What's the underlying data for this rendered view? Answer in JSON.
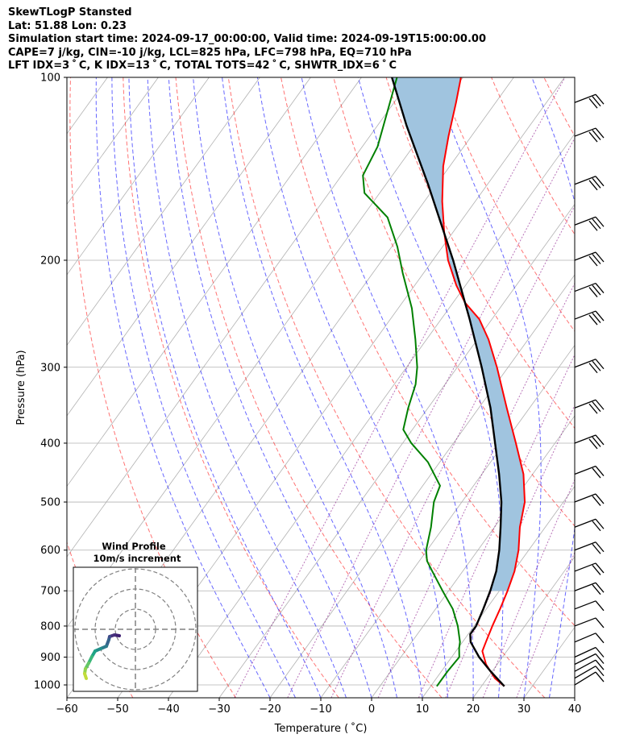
{
  "header": {
    "line1": "SkewTLogP Stansted",
    "line2": "Lat: 51.88   Lon: 0.23",
    "line3": "Simulation start time: 2024-09-17_00:00:00, Valid time: 2024-09-19T15:00:00.00",
    "line4": "CAPE=7 j/kg, CIN=-10 j/kg, LCL=825 hPa, LFC=798 hPa, EQ=710 hPa",
    "line5": "LFT IDX=3 ˚ C, K IDX=13 ˚ C, TOTAL TOTS=42 ˚ C, SHWTR_IDX=6 ˚ C"
  },
  "chart_data": {
    "type": "line",
    "xlabel": "Temperature ( ˚C)",
    "ylabel": "Pressure (hPa)",
    "xlim": [
      -60,
      40
    ],
    "ylim": [
      1050,
      100
    ],
    "x_ticks": [
      "−60",
      "−50",
      "−40",
      "−30",
      "−20",
      "−10",
      "0",
      "10",
      "20",
      "30",
      "40"
    ],
    "y_ticks": [
      "1000",
      "900",
      "800",
      "700",
      "600",
      "500",
      "400",
      "300",
      "200",
      "100"
    ],
    "skew": true,
    "log_pressure": true,
    "grid": true,
    "colors": {
      "temperature": "#ff0000",
      "dewpoint": "#008000",
      "parcel": "#000000",
      "cape_fill": "#a0c4df",
      "dry_adiabats": "#ff0000",
      "moist_adiabats": "#0000ff",
      "mixing_ratio": "#800080"
    },
    "series": [
      {
        "key": "temperature",
        "points": [
          [
            1005,
            24.5
          ],
          [
            975,
            21.5
          ],
          [
            925,
            17.8
          ],
          [
            880,
            15.2
          ],
          [
            850,
            14.6
          ],
          [
            800,
            13.6
          ],
          [
            750,
            12.7
          ],
          [
            700,
            11.6
          ],
          [
            650,
            10.2
          ],
          [
            600,
            8.0
          ],
          [
            550,
            5.0
          ],
          [
            500,
            2.4
          ],
          [
            450,
            -1.8
          ],
          [
            400,
            -7.7
          ],
          [
            350,
            -14.5
          ],
          [
            300,
            -22.2
          ],
          [
            270,
            -27.8
          ],
          [
            250,
            -32.5
          ],
          [
            235,
            -37.6
          ],
          [
            220,
            -41.8
          ],
          [
            200,
            -47.0
          ],
          [
            180,
            -51.7
          ],
          [
            160,
            -56.5
          ],
          [
            140,
            -61.3
          ],
          [
            125,
            -64.5
          ],
          [
            110,
            -67.8
          ],
          [
            100,
            -70.4
          ]
        ]
      },
      {
        "key": "dewpoint",
        "points": [
          [
            1005,
            11.2
          ],
          [
            950,
            11.2
          ],
          [
            900,
            11.5
          ],
          [
            870,
            10.2
          ],
          [
            850,
            9.5
          ],
          [
            800,
            6.8
          ],
          [
            750,
            3.4
          ],
          [
            700,
            -1.2
          ],
          [
            650,
            -6.0
          ],
          [
            625,
            -8.5
          ],
          [
            600,
            -10.2
          ],
          [
            550,
            -12.5
          ],
          [
            500,
            -15.5
          ],
          [
            470,
            -16.6
          ],
          [
            430,
            -22.3
          ],
          [
            400,
            -28.3
          ],
          [
            380,
            -31.8
          ],
          [
            350,
            -33.9
          ],
          [
            320,
            -35.8
          ],
          [
            300,
            -37.9
          ],
          [
            270,
            -42.2
          ],
          [
            240,
            -47.3
          ],
          [
            210,
            -54.1
          ],
          [
            190,
            -58.9
          ],
          [
            170,
            -65.0
          ],
          [
            155,
            -73.0
          ],
          [
            145,
            -75.8
          ],
          [
            130,
            -77.0
          ],
          [
            115,
            -79.8
          ],
          [
            100,
            -83.0
          ]
        ]
      },
      {
        "key": "parcel",
        "points": [
          [
            1005,
            24.5
          ],
          [
            950,
            19.7
          ],
          [
            900,
            15.4
          ],
          [
            850,
            11.6
          ],
          [
            825,
            10.4
          ],
          [
            800,
            10.4
          ],
          [
            750,
            9.4
          ],
          [
            700,
            8.2
          ],
          [
            650,
            6.6
          ],
          [
            600,
            4.2
          ],
          [
            550,
            1.2
          ],
          [
            500,
            -2.2
          ],
          [
            450,
            -6.6
          ],
          [
            400,
            -11.8
          ],
          [
            350,
            -17.7
          ],
          [
            300,
            -25.2
          ],
          [
            250,
            -34.4
          ],
          [
            200,
            -46.0
          ],
          [
            150,
            -61.7
          ],
          [
            120,
            -74.3
          ],
          [
            100,
            -84.0
          ]
        ]
      }
    ],
    "wind_profile": {
      "title": "Wind Profile",
      "subtitle": "10m/s increment"
    }
  }
}
